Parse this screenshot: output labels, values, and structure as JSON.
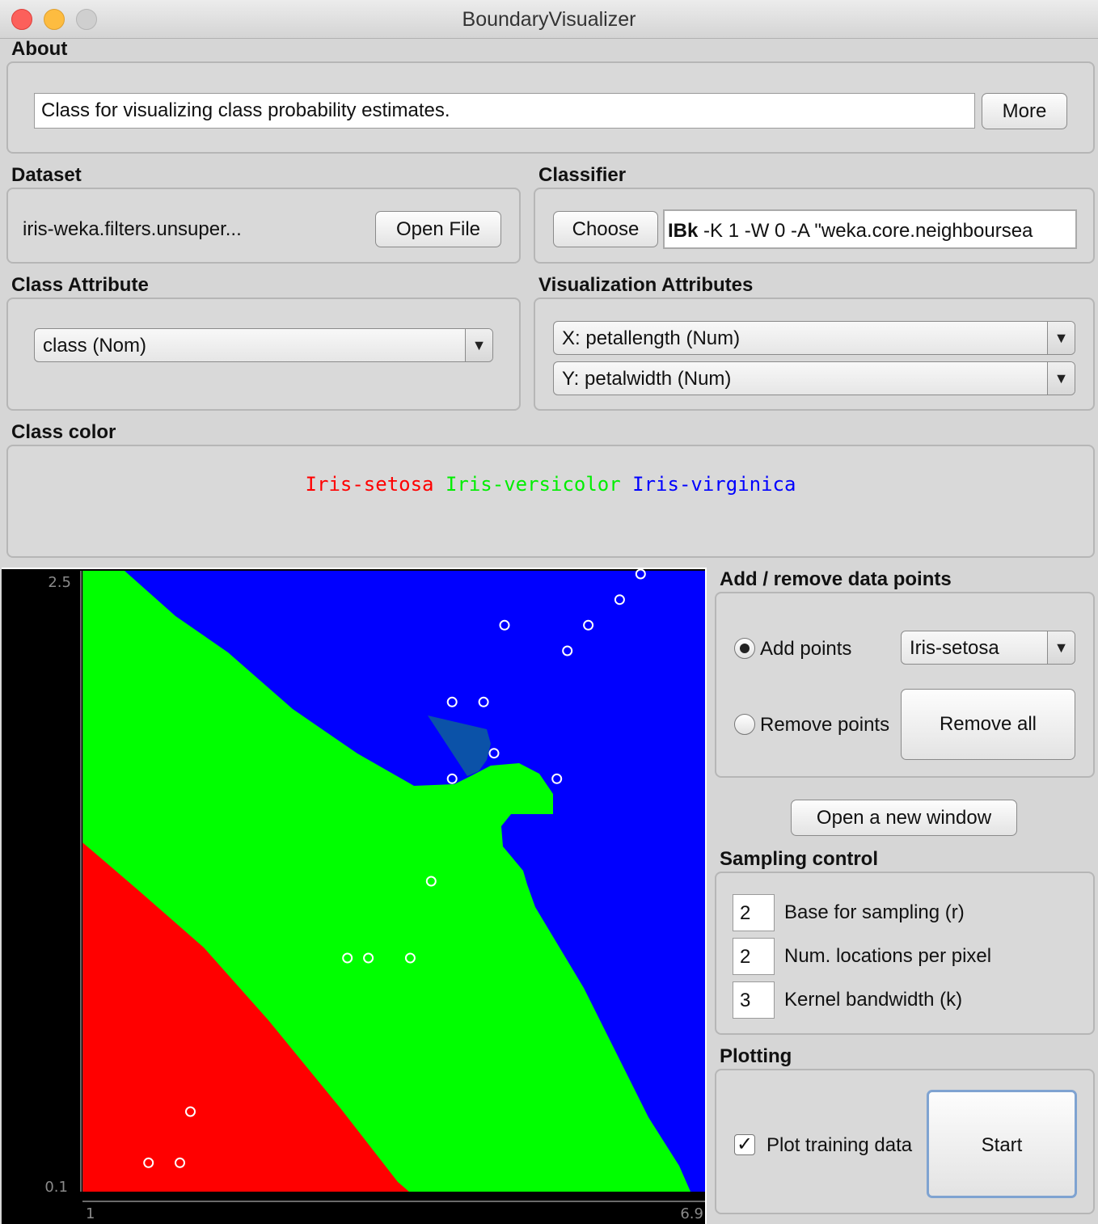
{
  "window": {
    "title": "BoundaryVisualizer"
  },
  "about": {
    "heading": "About",
    "description": "Class for visualizing class probability estimates.",
    "more_button": "More"
  },
  "dataset": {
    "heading": "Dataset",
    "name": "iris-weka.filters.unsuper...",
    "open_button": "Open File"
  },
  "classifier": {
    "heading": "Classifier",
    "choose_button": "Choose",
    "name": "IBk",
    "options": " -K 1 -W 0 -A \"weka.core.neighboursea"
  },
  "class_attribute": {
    "heading": "Class Attribute",
    "selected": "class (Nom)"
  },
  "visualization": {
    "heading": "Visualization Attributes",
    "x_selected": "X: petallength (Num)",
    "y_selected": "Y: petalwidth (Num)"
  },
  "class_color": {
    "heading": "Class color",
    "classes": [
      {
        "name": "Iris-setosa",
        "color": "#ff0000"
      },
      {
        "name": "Iris-versicolor",
        "color": "#00ee00"
      },
      {
        "name": "Iris-virginica",
        "color": "#0000ff"
      }
    ]
  },
  "plot": {
    "y_max": "2.5",
    "y_min": "0.1",
    "x_min": "1",
    "x_max": "6.9",
    "region_colors": {
      "setosa": "#ff0000",
      "versicolor": "#00ff00",
      "virginica": "#0000ff",
      "mixed": "#0b52a8"
    },
    "points": [
      [
        1.6,
        0.2
      ],
      [
        1.9,
        0.2
      ],
      [
        2.0,
        0.4
      ],
      [
        4.5,
        2.0
      ],
      [
        4.8,
        2.0
      ],
      [
        5.0,
        2.3
      ],
      [
        5.6,
        2.2
      ],
      [
        6.3,
        2.5
      ],
      [
        6.1,
        2.4
      ],
      [
        5.8,
        2.3
      ],
      [
        4.9,
        1.8
      ],
      [
        4.5,
        1.7
      ],
      [
        5.5,
        1.7
      ],
      [
        3.7,
        1.0
      ],
      [
        4.1,
        1.0
      ],
      [
        3.5,
        1.0
      ],
      [
        4.3,
        1.3
      ]
    ]
  },
  "add_remove": {
    "heading": "Add / remove data points",
    "add_label": "Add points",
    "remove_label": "Remove points",
    "class_selected": "Iris-setosa",
    "remove_all_button": "Remove all",
    "mode": "add"
  },
  "new_window_button": "Open a new window",
  "sampling": {
    "heading": "Sampling control",
    "rows": [
      {
        "value": "2",
        "label": "Base for sampling (r)"
      },
      {
        "value": "2",
        "label": "Num. locations per pixel"
      },
      {
        "value": "3",
        "label": "Kernel bandwidth (k)"
      }
    ]
  },
  "plotting": {
    "heading": "Plotting",
    "plot_training_label": "Plot training data",
    "plot_training_checked": true,
    "start_button": "Start"
  }
}
